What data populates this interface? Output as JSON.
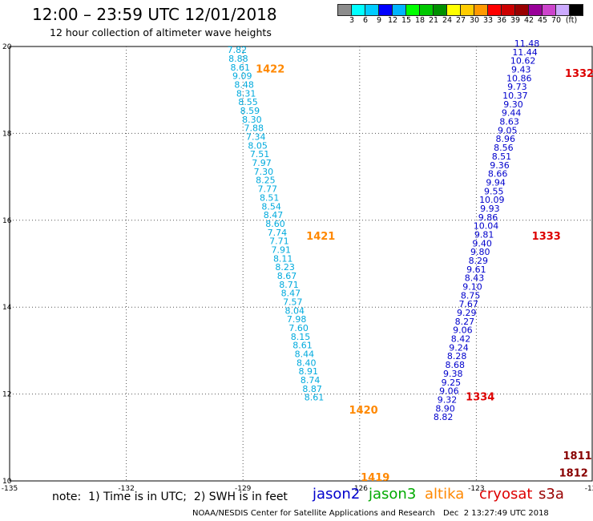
{
  "header": {
    "title": "12:00 – 23:59 UTC 12/01/2018",
    "subtitle": "12 hour collection of altimeter wave heights"
  },
  "colorbar": {
    "colors": [
      "#8c8c8c",
      "#00ffff",
      "#00ccff",
      "#0000ff",
      "#00b4ff",
      "#00ff00",
      "#00c800",
      "#009000",
      "#ffff00",
      "#ffcc00",
      "#ff9900",
      "#ff0000",
      "#cc0000",
      "#990000",
      "#990099",
      "#cc44cc",
      "#ccaaff",
      "#000000"
    ],
    "labels": [
      "3",
      "6",
      "9",
      "12",
      "15",
      "18",
      "21",
      "24",
      "27",
      "30",
      "33",
      "36",
      "39",
      "42",
      "45",
      "(ft)"
    ],
    "label_extra": "70"
  },
  "note": "note:  1) Time is in UTC;  2) SWH is in feet",
  "satellites": [
    {
      "name": "jason2",
      "color": "#0000cc"
    },
    {
      "name": "jason3",
      "color": "#00aa00"
    },
    {
      "name": "altika",
      "color": "#ff8800"
    },
    {
      "name": "cryosat",
      "color": "#dd0000"
    },
    {
      "name": "s3a",
      "color": "#990000"
    }
  ],
  "footer": {
    "credit": "NOAA/NESDIS Center for Satellite Applications and Research",
    "timestamp": "Dec  2 13:27:49 UTC 2018"
  },
  "chart_data": {
    "type": "scatter",
    "title": "12:00 – 23:59 UTC 12/01/2018",
    "xlim": [
      -135,
      -120
    ],
    "ylim": [
      10,
      20
    ],
    "xticks": [
      "-135",
      "-132",
      "-129",
      "-126",
      "-123",
      "-120"
    ],
    "yticks": [
      "10",
      "12",
      "14",
      "16",
      "18",
      "20"
    ],
    "grid": true,
    "units": "ft",
    "track_labels": [
      {
        "text": "1422",
        "lon": -128.3,
        "lat": 19.4,
        "color": "#ff8800"
      },
      {
        "text": "1421",
        "lon": -127.0,
        "lat": 15.55,
        "color": "#ff8800"
      },
      {
        "text": "1420",
        "lon": -125.9,
        "lat": 11.55,
        "color": "#ff8800"
      },
      {
        "text": "1419",
        "lon": -125.6,
        "lat": 10.0,
        "color": "#ff8800"
      },
      {
        "text": "1333",
        "lon": -121.2,
        "lat": 15.55,
        "color": "#dd0000"
      },
      {
        "text": "1332",
        "lon": -120.35,
        "lat": 19.3,
        "color": "#dd0000"
      },
      {
        "text": "1334",
        "lon": -122.9,
        "lat": 11.85,
        "color": "#dd0000"
      },
      {
        "text": "1811",
        "lon": -120.4,
        "lat": 10.5,
        "color": "#880000"
      },
      {
        "text": "1812",
        "lon": -120.5,
        "lat": 10.1,
        "color": "#880000"
      }
    ],
    "series": [
      {
        "name": "altika 1422-1419",
        "color": "#00aadd",
        "points": [
          [
            -129.15,
            19.85,
            "7.82"
          ],
          [
            -129.12,
            19.65,
            "8.88"
          ],
          [
            -129.07,
            19.45,
            "8.61"
          ],
          [
            -129.02,
            19.25,
            "9.09"
          ],
          [
            -128.97,
            19.05,
            "8.48"
          ],
          [
            -128.92,
            18.85,
            "8.31"
          ],
          [
            -128.87,
            18.65,
            "8.55"
          ],
          [
            -128.82,
            18.45,
            "8.59"
          ],
          [
            -128.77,
            18.25,
            "8.30"
          ],
          [
            -128.72,
            18.05,
            "7.88"
          ],
          [
            -128.67,
            17.85,
            "7.34"
          ],
          [
            -128.62,
            17.65,
            "8.05"
          ],
          [
            -128.57,
            17.45,
            "7.51"
          ],
          [
            -128.52,
            17.25,
            "7.97"
          ],
          [
            -128.47,
            17.05,
            "7.30"
          ],
          [
            -128.42,
            16.85,
            "8.25"
          ],
          [
            -128.37,
            16.65,
            "7.77"
          ],
          [
            -128.32,
            16.45,
            "8.51"
          ],
          [
            -128.27,
            16.25,
            "8.54"
          ],
          [
            -128.22,
            16.05,
            "8.47"
          ],
          [
            -128.17,
            15.85,
            "8.60"
          ],
          [
            -128.12,
            15.65,
            "7.74"
          ],
          [
            -128.07,
            15.45,
            "7.71"
          ],
          [
            -128.02,
            15.25,
            "7.91"
          ],
          [
            -127.97,
            15.05,
            "8.11"
          ],
          [
            -127.92,
            14.85,
            "8.23"
          ],
          [
            -127.87,
            14.65,
            "8.67"
          ],
          [
            -127.82,
            14.45,
            "8.71"
          ],
          [
            -127.77,
            14.25,
            "8.47"
          ],
          [
            -127.72,
            14.05,
            "7.57"
          ],
          [
            -127.67,
            13.85,
            "8.04"
          ],
          [
            -127.62,
            13.65,
            "7.98"
          ],
          [
            -127.57,
            13.45,
            "7.60"
          ],
          [
            -127.52,
            13.25,
            "8.15"
          ],
          [
            -127.47,
            13.05,
            "8.61"
          ],
          [
            -127.42,
            12.85,
            "8.44"
          ],
          [
            -127.37,
            12.65,
            "8.40"
          ],
          [
            -127.32,
            12.45,
            "8.91"
          ],
          [
            -127.27,
            12.25,
            "8.74"
          ],
          [
            -127.22,
            12.05,
            "8.87"
          ],
          [
            -127.17,
            11.85,
            "8.61"
          ]
        ]
      },
      {
        "name": "jason3 east track",
        "color": "#0000cc",
        "points": [
          [
            -121.7,
            20.0,
            "11.48"
          ],
          [
            -121.75,
            19.8,
            "11.44"
          ],
          [
            -121.8,
            19.6,
            "10.62"
          ],
          [
            -121.85,
            19.4,
            "9.43"
          ],
          [
            -121.9,
            19.2,
            "10.86"
          ],
          [
            -121.95,
            19.0,
            "9.73"
          ],
          [
            -122.0,
            18.8,
            "10.37"
          ],
          [
            -122.05,
            18.6,
            "9.30"
          ],
          [
            -122.1,
            18.4,
            "9.44"
          ],
          [
            -122.15,
            18.2,
            "8.63"
          ],
          [
            -122.2,
            18.0,
            "9.05"
          ],
          [
            -122.25,
            17.8,
            "8.96"
          ],
          [
            -122.3,
            17.6,
            "8.56"
          ],
          [
            -122.35,
            17.4,
            "8.51"
          ],
          [
            -122.4,
            17.2,
            "9.36"
          ],
          [
            -122.45,
            17.0,
            "8.66"
          ],
          [
            -122.5,
            16.8,
            "9.94"
          ],
          [
            -122.55,
            16.6,
            "9.55"
          ],
          [
            -122.6,
            16.4,
            "10.09"
          ],
          [
            -122.65,
            16.2,
            "9.93"
          ],
          [
            -122.7,
            16.0,
            "9.86"
          ],
          [
            -122.75,
            15.8,
            "10.04"
          ],
          [
            -122.8,
            15.6,
            "9.81"
          ],
          [
            -122.85,
            15.4,
            "9.40"
          ],
          [
            -122.9,
            15.2,
            "9.80"
          ],
          [
            -122.95,
            15.0,
            "8.29"
          ],
          [
            -123.0,
            14.8,
            "9.61"
          ],
          [
            -123.05,
            14.6,
            "8.43"
          ],
          [
            -123.1,
            14.4,
            "9.10"
          ],
          [
            -123.15,
            14.2,
            "8.75"
          ],
          [
            -123.2,
            14.0,
            "7.67"
          ],
          [
            -123.25,
            13.8,
            "9.29"
          ],
          [
            -123.3,
            13.6,
            "8.27"
          ],
          [
            -123.35,
            13.4,
            "9.06"
          ],
          [
            -123.4,
            13.2,
            "8.42"
          ],
          [
            -123.45,
            13.0,
            "9.24"
          ],
          [
            -123.5,
            12.8,
            "8.28"
          ],
          [
            -123.55,
            12.6,
            "8.68"
          ],
          [
            -123.6,
            12.4,
            "9.38"
          ],
          [
            -123.65,
            12.2,
            "9.25"
          ],
          [
            -123.7,
            12.0,
            "9.06"
          ],
          [
            -123.75,
            11.8,
            "9.32"
          ],
          [
            -123.8,
            11.6,
            "8.90"
          ],
          [
            -123.85,
            11.4,
            "8.82"
          ]
        ]
      }
    ]
  }
}
